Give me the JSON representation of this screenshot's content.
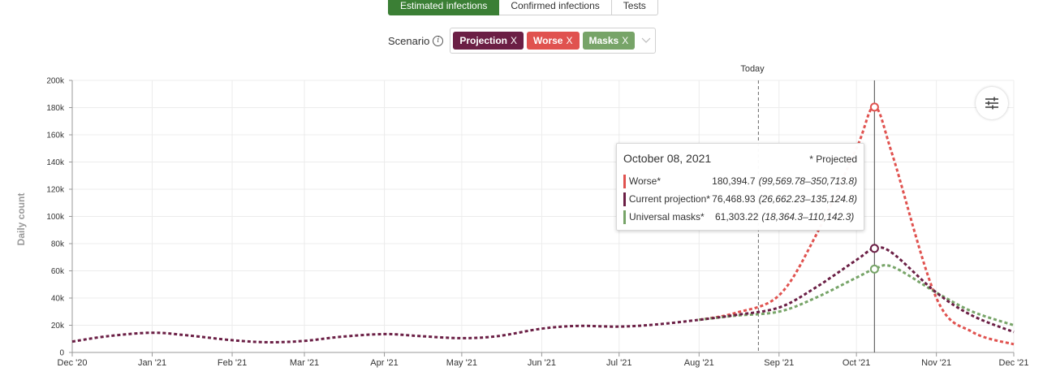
{
  "tabs": [
    {
      "label": "Estimated infections",
      "active": true
    },
    {
      "label": "Confirmed infections",
      "active": false
    },
    {
      "label": "Tests",
      "active": false
    }
  ],
  "scenario": {
    "label": "Scenario",
    "info_icon": "info-icon",
    "chips": [
      {
        "label": "Projection",
        "remove": "X",
        "color": "#6b1f45"
      },
      {
        "label": "Worse",
        "remove": "X",
        "color": "#e0524f"
      },
      {
        "label": "Masks",
        "remove": "X",
        "color": "#77a468"
      }
    ],
    "dropdown_icon": "chevron-down-icon"
  },
  "settings_icon": "sliders-icon",
  "tooltip": {
    "date": "October 08, 2021",
    "note": "* Projected",
    "rows": [
      {
        "name": "Worse*",
        "value": "180,394.7",
        "ci": "(99,569.78–350,713.8)",
        "color": "#e0524f"
      },
      {
        "name": "Current projection*",
        "value": "76,468.93",
        "ci": "(26,662.23–135,124.8)",
        "color": "#6b1f45"
      },
      {
        "name": "Universal masks*",
        "value": "61,303.22",
        "ci": "(18,364.3–110,142.3)",
        "color": "#77a468"
      }
    ]
  },
  "chart_data": {
    "type": "line",
    "ylabel": "Daily count",
    "ylim": [
      0,
      200000
    ],
    "y_ticks": [
      0,
      20000,
      40000,
      60000,
      80000,
      100000,
      120000,
      140000,
      160000,
      180000,
      200000
    ],
    "y_tick_labels": [
      "0",
      "20k",
      "40k",
      "60k",
      "80k",
      "100k",
      "120k",
      "140k",
      "160k",
      "180k",
      "200k"
    ],
    "x_ticks": [
      "2020-12-01",
      "2021-01-01",
      "2021-02-01",
      "2021-03-01",
      "2021-04-01",
      "2021-05-01",
      "2021-06-01",
      "2021-07-01",
      "2021-08-01",
      "2021-09-01",
      "2021-10-01",
      "2021-11-01",
      "2021-12-01"
    ],
    "x_tick_labels": [
      "Dec '20",
      "Jan '21",
      "Feb '21",
      "Mar '21",
      "Apr '21",
      "May '21",
      "Jun '21",
      "Jul '21",
      "Aug '21",
      "Sep '21",
      "Oct '21",
      "Nov '21",
      "Dec '21"
    ],
    "xlim": [
      "2020-12-01",
      "2021-12-01"
    ],
    "today_label": "Today",
    "today_date": "2021-08-24",
    "hover_date": "2021-10-08",
    "grid": true,
    "line_style": "dotted",
    "series": [
      {
        "color": "#6b1f45",
        "x": [
          "2020-12-01",
          "2020-12-15",
          "2021-01-01",
          "2021-01-15",
          "2021-02-01",
          "2021-02-15",
          "2021-03-01",
          "2021-03-15",
          "2021-04-01",
          "2021-04-15",
          "2021-05-01",
          "2021-05-15",
          "2021-06-01",
          "2021-06-15",
          "2021-07-01",
          "2021-07-15",
          "2021-08-01",
          "2021-08-15",
          "2021-09-01",
          "2021-09-15",
          "2021-10-01",
          "2021-10-08",
          "2021-10-15",
          "2021-11-01",
          "2021-11-15",
          "2021-12-01"
        ],
        "y": [
          8000,
          12000,
          14500,
          12500,
          9000,
          7500,
          8500,
          11500,
          13500,
          12000,
          10500,
          12000,
          17500,
          19500,
          19000,
          20500,
          24000,
          27500,
          33000,
          47500,
          68000,
          76469,
          73000,
          44000,
          27000,
          15000
        ]
      },
      {
        "color": "#e0524f",
        "x": [
          "2021-08-01",
          "2021-08-15",
          "2021-09-01",
          "2021-09-15",
          "2021-10-01",
          "2021-10-08",
          "2021-10-15",
          "2021-11-01",
          "2021-11-15",
          "2021-12-01"
        ],
        "y": [
          24000,
          29000,
          42000,
          85000,
          150000,
          180395,
          145000,
          40000,
          15000,
          6000
        ]
      },
      {
        "color": "#77a468",
        "x": [
          "2021-08-01",
          "2021-08-15",
          "2021-09-01",
          "2021-09-15",
          "2021-10-01",
          "2021-10-08",
          "2021-10-15",
          "2021-11-01",
          "2021-11-15",
          "2021-12-01"
        ],
        "y": [
          24000,
          27000,
          30000,
          40000,
          55000,
          61303,
          63000,
          44000,
          30000,
          20000
        ]
      }
    ]
  }
}
